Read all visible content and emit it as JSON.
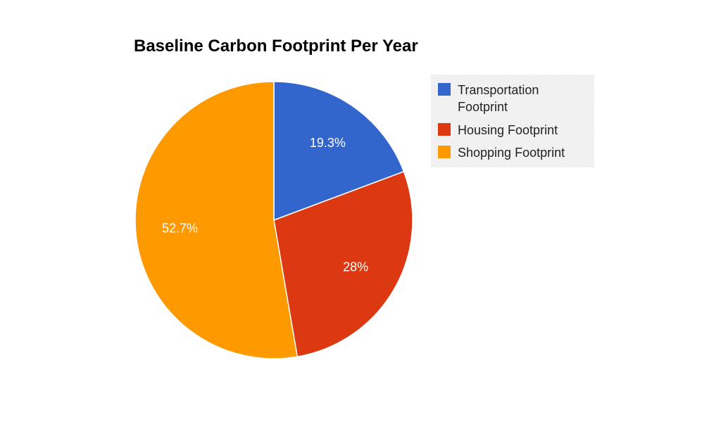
{
  "chart_data": {
    "type": "pie",
    "title": "Baseline Carbon Footprint Per Year",
    "legend_position": "right",
    "slices": [
      {
        "label": "Transportation Footprint",
        "value": 19.3,
        "display": "19.3%",
        "color": "#3366cc"
      },
      {
        "label": "Housing Footprint",
        "value": 28,
        "display": "28%",
        "color": "#dc3912"
      },
      {
        "label": "Shopping Footprint",
        "value": 52.7,
        "display": "52.7%",
        "color": "#ff9900"
      }
    ]
  }
}
